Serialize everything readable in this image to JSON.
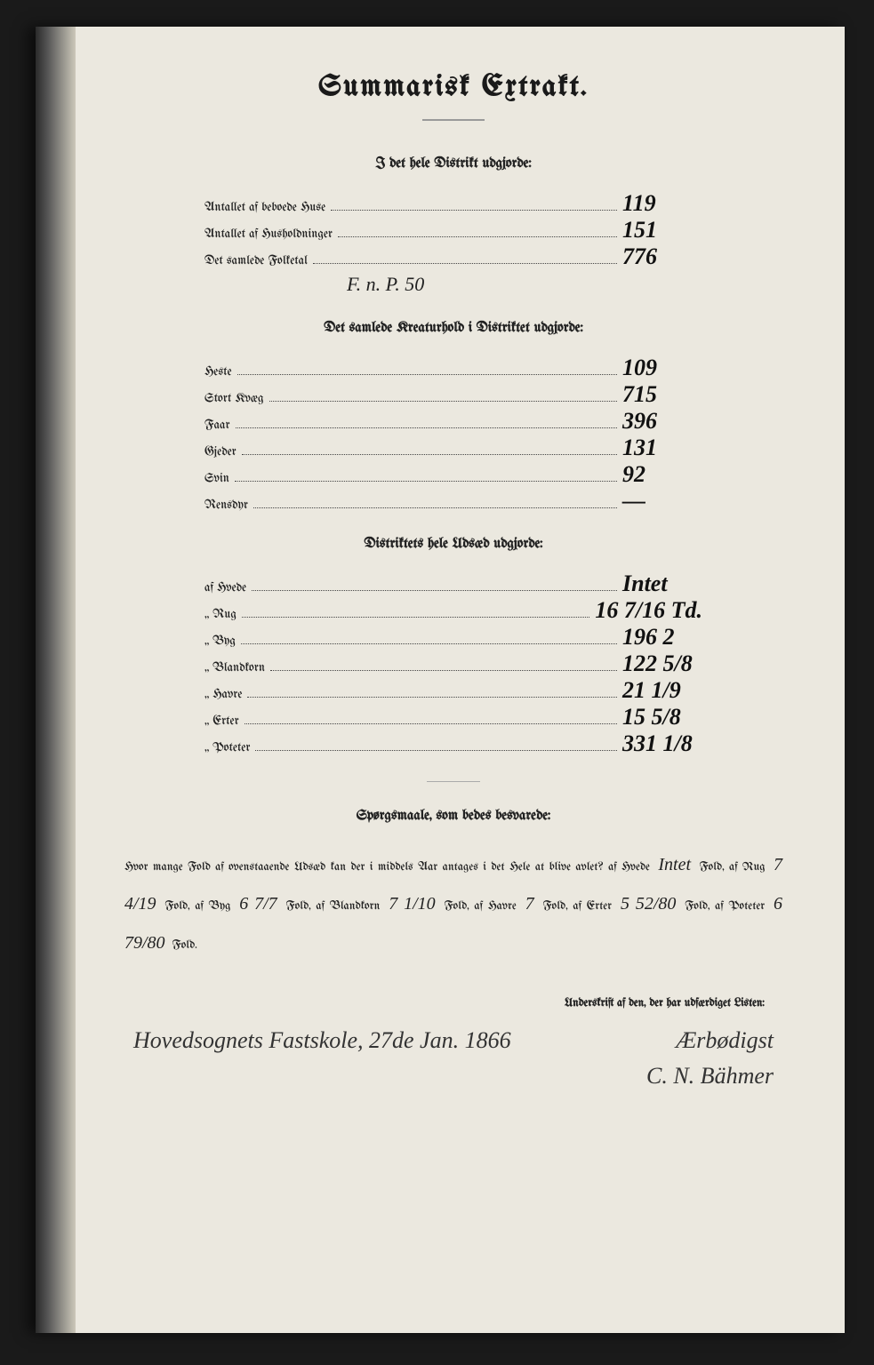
{
  "title": "Summarisk Extrakt.",
  "section1": {
    "heading": "I det hele Distrikt udgjorde:",
    "rows": [
      {
        "label": "Antallet af beboede Huse",
        "value": "119"
      },
      {
        "label": "Antallet af Husholdninger",
        "value": "151"
      },
      {
        "label": "Det samlede Folketal",
        "value": "776"
      }
    ],
    "note": "F. n. P. 50"
  },
  "section2": {
    "heading": "Det samlede Kreaturhold i Distriktet udgjorde:",
    "rows": [
      {
        "label": "Heste",
        "value": "109"
      },
      {
        "label": "Stort Kvæg",
        "value": "715"
      },
      {
        "label": "Faar",
        "value": "396"
      },
      {
        "label": "Gjeder",
        "value": "131"
      },
      {
        "label": "Svin",
        "value": "92"
      },
      {
        "label": "Rensdyr",
        "value": "—"
      }
    ]
  },
  "section3": {
    "heading": "Distriktets hele Udsæd udgjorde:",
    "rows": [
      {
        "label": "af Hvede",
        "value": "Intet"
      },
      {
        "label": "„ Rug",
        "value": "16 7/16 Td."
      },
      {
        "label": "„ Byg",
        "value": "196 2"
      },
      {
        "label": "„ Blandkorn",
        "value": "122 5/8"
      },
      {
        "label": "„ Havre",
        "value": "21 1/9"
      },
      {
        "label": "„ Erter",
        "value": "15 5/8"
      },
      {
        "label": "„ Poteter",
        "value": "331 1/8"
      }
    ]
  },
  "questions": {
    "heading": "Spørgsmaale, som bedes besvarede:",
    "intro": "Hvor mange Fold af ovenstaaende Udsæd kan der i middels Aar antages i det Hele at blive avlet?",
    "fills": {
      "hvede": "Intet",
      "rug": "7 4/19",
      "byg": "6 7/7",
      "blandkorn": "7 1/10",
      "havre": "7",
      "erter": "5 52/80",
      "poteter": "6 79/80"
    }
  },
  "signature": {
    "label": "Underskrift af den, der har udfærdiget Listen:",
    "place_date": "Hovedsognets Fastskole, 27de Jan. 1866",
    "closing": "Ærbødigst",
    "name": "C. N. Bähmer"
  },
  "colors": {
    "paper": "#ebe8df",
    "ink": "#1a1a1a",
    "script": "#222222",
    "background": "#1a1a1a"
  },
  "typography": {
    "title_size_pt": 34,
    "heading_size_pt": 16,
    "body_size_pt": 14,
    "script_size_pt": 26
  }
}
